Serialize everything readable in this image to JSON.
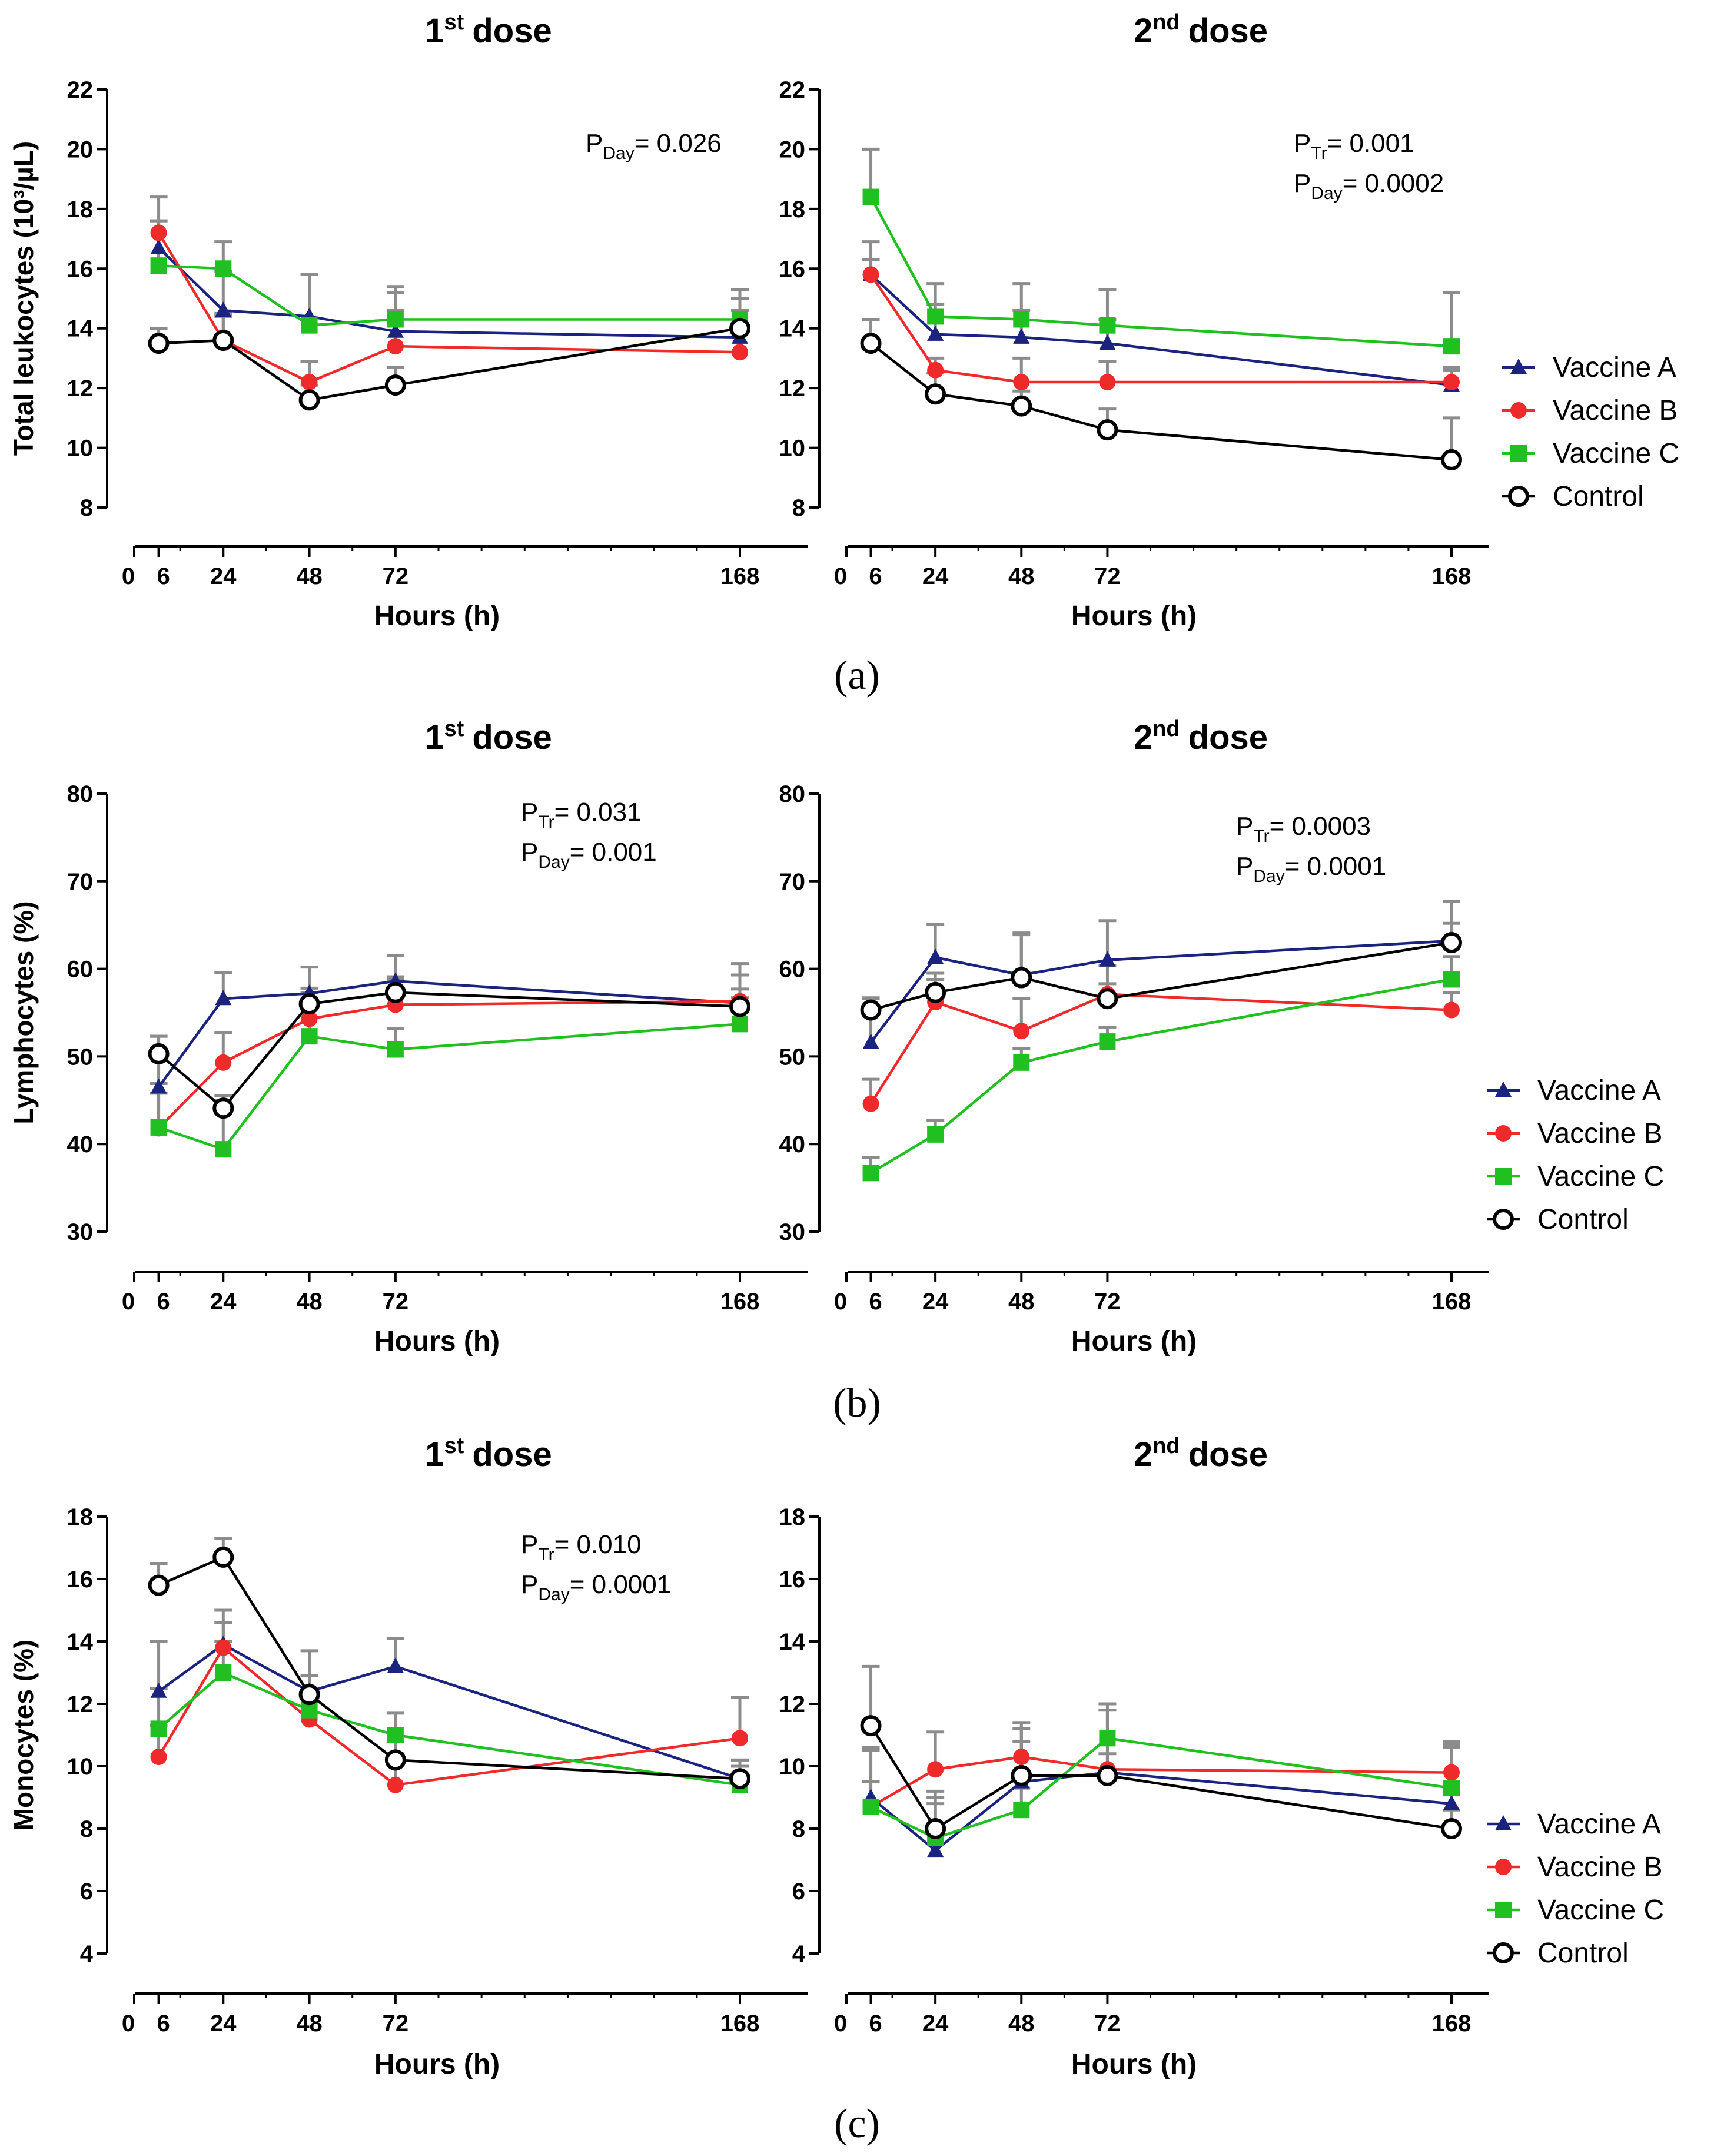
{
  "colors": {
    "Vaccine A": "#1a237e",
    "Vaccine B": "#ee2a2a",
    "Vaccine C": "#1fc01f",
    "Control": "#000000",
    "error_bar": "#8c8c8c"
  },
  "legend": [
    "Vaccine A",
    "Vaccine B",
    "Vaccine C",
    "Control"
  ],
  "chart_data": [
    {
      "type": "line",
      "panel": "(a)",
      "title": "dose",
      "title_ord": "1",
      "title_sup": "st",
      "xlabel": "Hours (h)",
      "ylabel": "Total leukocytes (10³/µL)",
      "ylim": [
        8,
        22
      ],
      "yticks": [
        8,
        10,
        12,
        14,
        16,
        18,
        20,
        22
      ],
      "x": [
        6,
        24,
        48,
        72,
        168
      ],
      "xticks": [
        "0",
        "6",
        "24",
        "48",
        "72",
        "168"
      ],
      "stats": [
        {
          "sym": "P",
          "sub": "Day",
          "text": "= 0.026"
        }
      ],
      "series": [
        {
          "name": "Vaccine A",
          "values": [
            16.7,
            14.6,
            14.4,
            13.9,
            13.7
          ],
          "err": [
            0.9,
            1.3,
            1.4,
            1.3,
            1.3
          ]
        },
        {
          "name": "Vaccine B",
          "values": [
            17.2,
            13.6,
            12.2,
            13.4,
            13.2
          ],
          "err": [
            1.2,
            0.8,
            0.7,
            1.2,
            1.4
          ]
        },
        {
          "name": "Vaccine C",
          "values": [
            16.1,
            16.0,
            14.1,
            14.3,
            14.3
          ],
          "err": [
            1.5,
            0.9,
            1.7,
            1.1,
            1.0
          ]
        },
        {
          "name": "Control",
          "values": [
            13.5,
            13.6,
            11.6,
            12.1,
            14.0
          ],
          "err": [
            0.5,
            0.9,
            0.5,
            0.6,
            0.6
          ]
        }
      ]
    },
    {
      "type": "line",
      "panel": "(a)",
      "title": "dose",
      "title_ord": "2",
      "title_sup": "nd",
      "xlabel": "Hours (h)",
      "ylabel": "",
      "ylim": [
        8,
        22
      ],
      "yticks": [
        8,
        10,
        12,
        14,
        16,
        18,
        20,
        22
      ],
      "x": [
        6,
        24,
        48,
        72,
        168
      ],
      "xticks": [
        "0",
        "6",
        "24",
        "48",
        "72",
        "168"
      ],
      "stats": [
        {
          "sym": "P",
          "sub": "Tr",
          "text": "= 0.001"
        },
        {
          "sym": "P",
          "sub": "Day",
          "text": "= 0.0002"
        }
      ],
      "series": [
        {
          "name": "Vaccine A",
          "values": [
            15.8,
            13.8,
            13.7,
            13.5,
            12.1
          ],
          "err": [
            1.1,
            1.0,
            0.9,
            0.8,
            0.6
          ]
        },
        {
          "name": "Vaccine B",
          "values": [
            15.8,
            12.6,
            12.2,
            12.2,
            12.2
          ],
          "err": [
            0.5,
            0.4,
            0.8,
            0.7,
            0.4
          ]
        },
        {
          "name": "Vaccine C",
          "values": [
            18.4,
            14.4,
            14.3,
            14.1,
            13.4
          ],
          "err": [
            1.6,
            1.1,
            1.2,
            1.2,
            1.8
          ]
        },
        {
          "name": "Control",
          "values": [
            13.5,
            11.8,
            11.4,
            10.6,
            9.6
          ],
          "err": [
            0.8,
            0.7,
            0.5,
            0.7,
            1.4
          ]
        }
      ]
    },
    {
      "type": "line",
      "panel": "(b)",
      "title": "dose",
      "title_ord": "1",
      "title_sup": "st",
      "xlabel": "Hours (h)",
      "ylabel": "Lymphocytes (%)",
      "ylim": [
        30,
        80
      ],
      "yticks": [
        30,
        40,
        50,
        60,
        70,
        80
      ],
      "x": [
        6,
        24,
        48,
        72,
        168
      ],
      "xticks": [
        "0",
        "6",
        "24",
        "48",
        "72",
        "168"
      ],
      "stats": [
        {
          "sym": "P",
          "sub": "Tr",
          "text": "= 0.031"
        },
        {
          "sym": "P",
          "sub": "Day",
          "text": "= 0.001"
        }
      ],
      "series": [
        {
          "name": "Vaccine A",
          "values": [
            46.5,
            56.6,
            57.2,
            58.6,
            56.1
          ],
          "err": [
            5.8,
            3.0,
            3.0,
            2.9,
            4.5
          ]
        },
        {
          "name": "Vaccine B",
          "values": [
            41.8,
            49.3,
            54.3,
            55.9,
            56.3
          ],
          "err": [
            4.0,
            3.4,
            3.0,
            2.9,
            3.0
          ]
        },
        {
          "name": "Vaccine C",
          "values": [
            41.9,
            39.4,
            52.3,
            50.8,
            53.7
          ],
          "err": [
            5.0,
            5.6,
            4.1,
            2.4,
            3.0
          ]
        },
        {
          "name": "Control",
          "values": [
            50.3,
            44.1,
            56.0,
            57.3,
            55.7
          ],
          "err": [
            2.0,
            1.4,
            1.8,
            1.8,
            2.0
          ]
        }
      ]
    },
    {
      "type": "line",
      "panel": "(b)",
      "title": "dose",
      "title_ord": "2",
      "title_sup": "nd",
      "xlabel": "Hours (h)",
      "ylabel": "",
      "ylim": [
        30,
        80
      ],
      "yticks": [
        30,
        40,
        50,
        60,
        70,
        80
      ],
      "x": [
        6,
        24,
        48,
        72,
        168
      ],
      "xticks": [
        "0",
        "6",
        "24",
        "48",
        "72",
        "168"
      ],
      "stats": [
        {
          "sym": "P",
          "sub": "Tr",
          "text": "= 0.0003"
        },
        {
          "sym": "P",
          "sub": "Day",
          "text": "= 0.0001"
        }
      ],
      "series": [
        {
          "name": "Vaccine A",
          "values": [
            51.6,
            61.3,
            59.3,
            61.0,
            63.2
          ],
          "err": [
            5.0,
            3.8,
            4.8,
            4.5,
            4.5
          ]
        },
        {
          "name": "Vaccine B",
          "values": [
            44.6,
            56.2,
            52.9,
            57.1,
            55.3
          ],
          "err": [
            2.8,
            3.3,
            3.7,
            3.3,
            2.0
          ]
        },
        {
          "name": "Vaccine C",
          "values": [
            36.7,
            41.1,
            49.3,
            51.7,
            58.8
          ],
          "err": [
            1.8,
            1.6,
            1.6,
            1.6,
            2.6
          ]
        },
        {
          "name": "Control",
          "values": [
            55.3,
            57.3,
            59.0,
            56.6,
            63.0
          ],
          "err": [
            1.4,
            1.5,
            4.9,
            1.7,
            2.2
          ]
        }
      ]
    },
    {
      "type": "line",
      "panel": "(c)",
      "title": "dose",
      "title_ord": "1",
      "title_sup": "st",
      "xlabel": "Hours (h)",
      "ylabel": "Monocytes (%)",
      "ylim": [
        4,
        18
      ],
      "yticks": [
        4,
        6,
        8,
        10,
        12,
        14,
        16,
        18
      ],
      "x": [
        6,
        24,
        48,
        72,
        168
      ],
      "xticks": [
        "0",
        "6",
        "24",
        "48",
        "72",
        "168"
      ],
      "stats": [
        {
          "sym": "P",
          "sub": "Tr",
          "text": "= 0.010"
        },
        {
          "sym": "P",
          "sub": "Day",
          "text": "= 0.0001"
        }
      ],
      "series": [
        {
          "name": "Vaccine A",
          "values": [
            12.4,
            13.9,
            12.4,
            13.2,
            9.6
          ],
          "err": [
            1.6,
            1.1,
            1.3,
            0.9,
            0.6
          ]
        },
        {
          "name": "Vaccine B",
          "values": [
            10.3,
            13.8,
            11.5,
            9.4,
            10.9
          ],
          "err": [
            1.0,
            0.8,
            0.8,
            1.0,
            1.3
          ]
        },
        {
          "name": "Vaccine C",
          "values": [
            11.2,
            13.0,
            11.8,
            11.0,
            9.4
          ],
          "err": [
            1.3,
            1.0,
            0.6,
            0.7,
            0.6
          ]
        },
        {
          "name": "Control",
          "values": [
            15.8,
            16.7,
            12.3,
            10.2,
            9.6
          ],
          "err": [
            0.7,
            0.6,
            0.6,
            0.6,
            0.6
          ]
        }
      ]
    },
    {
      "type": "line",
      "panel": "(c)",
      "title": "dose",
      "title_ord": "2",
      "title_sup": "nd",
      "xlabel": "Hours (h)",
      "ylabel": "",
      "ylim": [
        4,
        18
      ],
      "yticks": [
        4,
        6,
        8,
        10,
        12,
        14,
        16,
        18
      ],
      "x": [
        6,
        24,
        48,
        72,
        168
      ],
      "xticks": [
        "0",
        "6",
        "24",
        "48",
        "72",
        "168"
      ],
      "stats": [],
      "series": [
        {
          "name": "Vaccine A",
          "values": [
            9.0,
            7.3,
            9.5,
            9.8,
            8.8
          ],
          "err": [
            1.6,
            1.7,
            1.7,
            2.0,
            1.9
          ]
        },
        {
          "name": "Vaccine B",
          "values": [
            8.7,
            9.9,
            10.3,
            9.9,
            9.8
          ],
          "err": [
            1.8,
            1.2,
            1.1,
            1.9,
            1.0
          ]
        },
        {
          "name": "Vaccine C",
          "values": [
            8.7,
            7.7,
            8.6,
            10.9,
            9.3
          ],
          "err": [
            0.8,
            1.1,
            0.7,
            1.1,
            1.3
          ]
        },
        {
          "name": "Control",
          "values": [
            11.3,
            8.0,
            9.7,
            9.7,
            8.0
          ],
          "err": [
            1.9,
            1.2,
            1.1,
            0.7,
            0.6
          ]
        }
      ]
    }
  ]
}
